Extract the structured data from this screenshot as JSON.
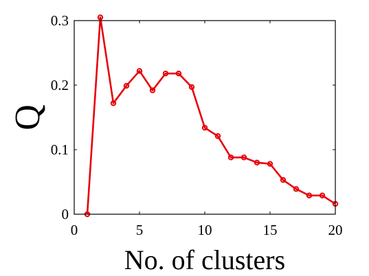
{
  "chart_data": {
    "type": "line",
    "title": "",
    "xlabel": "No. of clusters",
    "ylabel": "Q",
    "xlim": [
      0,
      20
    ],
    "ylim": [
      0,
      0.3
    ],
    "xticks": [
      0,
      5,
      10,
      15,
      20
    ],
    "yticks": [
      0,
      0.1,
      0.2,
      0.3
    ],
    "xtick_labels": [
      "0",
      "5",
      "10",
      "15",
      "20"
    ],
    "ytick_labels": [
      "0",
      "0.1",
      "0.2",
      "0.3"
    ],
    "grid": false,
    "series": [
      {
        "color": "#e8000b",
        "marker": "circle",
        "x": [
          1,
          2,
          3,
          4,
          5,
          6,
          7,
          8,
          9,
          10,
          11,
          12,
          13,
          14,
          15,
          16,
          17,
          18,
          19,
          20
        ],
        "y": [
          0.0,
          0.305,
          0.172,
          0.199,
          0.222,
          0.192,
          0.218,
          0.218,
          0.197,
          0.134,
          0.121,
          0.088,
          0.088,
          0.08,
          0.078,
          0.053,
          0.039,
          0.029,
          0.029,
          0.016
        ]
      }
    ]
  }
}
